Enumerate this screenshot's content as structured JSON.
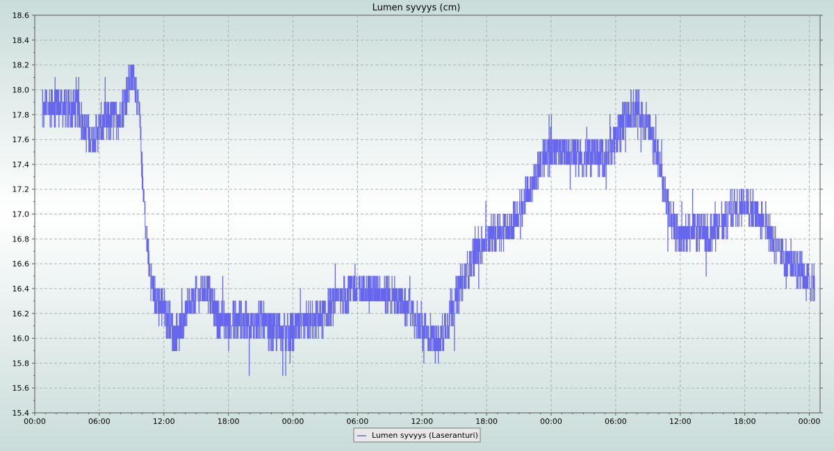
{
  "chart_data": {
    "type": "line",
    "title": "Lumen syvyys (cm)",
    "xlabel": "",
    "ylabel": "",
    "ylim": [
      15.4,
      18.6
    ],
    "y_ticks": [
      "15.4",
      "15.6",
      "15.8",
      "16.0",
      "16.2",
      "16.4",
      "16.6",
      "16.8",
      "17.0",
      "17.2",
      "17.4",
      "17.6",
      "17.8",
      "18.0",
      "18.2",
      "18.4",
      "18.6"
    ],
    "x_ticks": [
      "00:00",
      "06:00",
      "12:00",
      "18:00",
      "00:00",
      "06:00",
      "12:00",
      "18:00",
      "00:00",
      "06:00",
      "12:00",
      "18:00",
      "00:00"
    ],
    "x_tick_hours": [
      0,
      6,
      12,
      18,
      24,
      30,
      36,
      42,
      48,
      54,
      60,
      66,
      72
    ],
    "xlim_hours": [
      0,
      73.0
    ],
    "grid": true,
    "legend_position": "bottom-center",
    "series": [
      {
        "name": "Lumen syvyys (Laseranturi)",
        "color": "#6666ee",
        "x_hours": [
          0.7,
          1,
          2,
          3,
          4,
          4.5,
          5,
          5.5,
          6,
          7,
          8,
          8.5,
          9,
          9.3,
          9.7,
          10,
          10.3,
          10.6,
          10.9,
          11.3,
          12,
          13,
          14,
          15,
          16,
          17,
          18,
          19,
          20,
          21,
          22,
          23,
          24,
          25,
          26,
          27,
          28,
          29,
          30,
          31,
          32,
          33,
          34,
          35,
          36,
          37,
          37.5,
          38,
          39,
          40,
          41,
          42,
          43,
          44,
          45,
          46,
          47,
          48,
          49,
          50,
          51,
          52,
          53,
          54,
          55,
          56,
          57,
          58,
          59,
          60,
          61,
          62,
          63,
          64,
          65,
          66,
          67,
          68,
          69,
          70,
          71,
          72,
          72.5
        ],
        "y": [
          17.8,
          17.85,
          17.9,
          17.85,
          17.85,
          17.7,
          17.65,
          17.6,
          17.7,
          17.75,
          17.8,
          17.95,
          18.1,
          18.1,
          17.8,
          17.3,
          16.9,
          16.6,
          16.4,
          16.3,
          16.25,
          16.0,
          16.2,
          16.35,
          16.4,
          16.15,
          16.1,
          16.15,
          16.1,
          16.15,
          16.05,
          16.05,
          16.05,
          16.1,
          16.15,
          16.2,
          16.3,
          16.35,
          16.4,
          16.4,
          16.4,
          16.35,
          16.3,
          16.2,
          16.05,
          16.0,
          15.95,
          16.05,
          16.3,
          16.5,
          16.7,
          16.8,
          16.85,
          16.9,
          17.0,
          17.2,
          17.4,
          17.5,
          17.5,
          17.5,
          17.45,
          17.5,
          17.45,
          17.6,
          17.8,
          17.85,
          17.7,
          17.4,
          17.0,
          16.8,
          16.9,
          16.85,
          16.85,
          16.95,
          17.05,
          17.1,
          17.0,
          16.95,
          16.7,
          16.65,
          16.55,
          16.45,
          16.45
        ]
      }
    ]
  }
}
